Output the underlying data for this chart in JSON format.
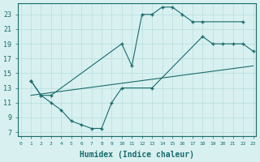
{
  "line1_x": [
    1,
    2,
    3,
    10,
    11,
    12,
    13,
    14,
    15,
    16,
    17,
    18,
    22
  ],
  "line1_y": [
    14,
    12,
    12,
    19,
    16,
    23,
    23,
    24,
    24,
    23,
    22,
    22,
    22
  ],
  "line2_x": [
    1,
    2,
    3,
    4,
    5,
    6,
    7,
    8,
    9,
    10,
    13,
    18,
    19,
    20,
    21,
    22,
    23
  ],
  "line2_y": [
    14,
    12,
    11,
    10,
    8.5,
    8,
    7.5,
    7.5,
    11,
    13,
    13,
    20,
    19,
    19,
    19,
    19,
    18
  ],
  "line3_x": [
    1,
    23
  ],
  "line3_y": [
    12,
    16
  ],
  "color": "#1a6b6b",
  "bg_color": "#d8f0f0",
  "grid_color": "#b8dede",
  "xlabel": "Humidex (Indice chaleur)",
  "yticks": [
    7,
    9,
    11,
    13,
    15,
    17,
    19,
    21,
    23
  ],
  "xticks": [
    0,
    1,
    2,
    3,
    4,
    5,
    6,
    7,
    8,
    9,
    10,
    11,
    12,
    13,
    14,
    15,
    16,
    17,
    18,
    19,
    20,
    21,
    22,
    23
  ],
  "xlim": [
    -0.3,
    23.3
  ],
  "ylim": [
    6.5,
    24.5
  ],
  "xlabel_fontsize": 7,
  "ytick_fontsize": 6,
  "xtick_fontsize": 4.5
}
